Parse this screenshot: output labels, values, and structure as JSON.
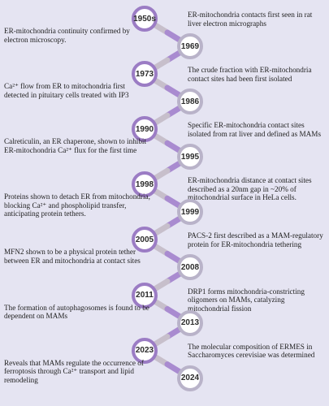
{
  "events": [
    {
      "year": "1950s",
      "text": "ER-mitochondria contacts first seen in rat liver electron micrographs"
    },
    {
      "year": "1969",
      "text": "ER-mitochondria continuity confirmed by electron microscopy."
    },
    {
      "year": "1973",
      "text": "The crude fraction with ER-mitochondria contact sites had been first isolated"
    },
    {
      "year": "1986",
      "text": "Ca²⁺ flow from ER to mitochondria first detected in pituitary cells treated with IP3"
    },
    {
      "year": "1990",
      "text": "Specific ER-mitochondria contact sites isolated from rat liver and defined as MAMs"
    },
    {
      "year": "1995",
      "text": "Calreticulin, an ER chaperone, shown to inhibit ER-mitochondria Ca²⁺ flux for the first time"
    },
    {
      "year": "1998",
      "text": "ER-mitochondria distance at contact sites described as a 20nm gap in ~20% of mitochondrial surface in HeLa cells."
    },
    {
      "year": "1999",
      "text": "Proteins shown to detach ER from mitochondria, blocking Ca²⁺ and phospholipid transfer, anticipating protein tethers."
    },
    {
      "year": "2005",
      "text": "PACS-2 first described as a MAM-regulatory protein for ER-mitochondria tethering"
    },
    {
      "year": "2008",
      "text": "MFN2 shown to be a physical protein tether between ER and mitochondria at contact sites"
    },
    {
      "year": "2011",
      "text": "DRP1 forms mitochondria-constricting oligomers on MAMs, catalyzing mitochondrial fission"
    },
    {
      "year": "2013",
      "text": "The formation of autophagosomes is found to be dependent on MAMs"
    },
    {
      "year": "2023",
      "text": "The molecular composition of ERMES in Saccharomyces cerevisiae was determined"
    },
    {
      "year": "2024",
      "text": "Reveals that MAMs regulate the occurrence of ferroptosis through Ca²⁺ transport and lipid remodeling"
    }
  ],
  "colors": {
    "background": "#e5e4f2",
    "connector_purple": "#a98bd0",
    "connector_grey": "#c7bfcb",
    "node_border_purple": "#9b7cc4",
    "node_border_grey": "#b9b3c9"
  }
}
